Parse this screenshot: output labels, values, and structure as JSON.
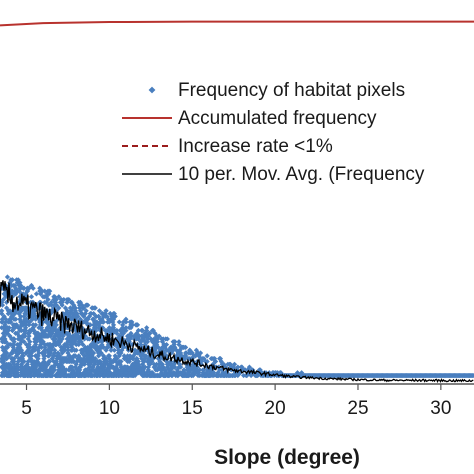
{
  "chart_data": {
    "type": "scatter",
    "xlabel": "Slope (degree)",
    "ylabel": "",
    "title": "",
    "x_ticks": [
      5,
      10,
      15,
      20,
      25,
      30
    ],
    "xlim": [
      3.4,
      32
    ],
    "ylim": [
      0,
      100
    ],
    "grid": false,
    "legend_position": "top-right",
    "legend": [
      {
        "label": "Frequency of habitat pixels",
        "style": "marker",
        "color": "#4a7fbf"
      },
      {
        "label": "Accumulated frequency",
        "style": "line",
        "color": "#b8322e"
      },
      {
        "label": "Increase rate <1%",
        "style": "dashed",
        "color": "#9b1c1c"
      },
      {
        "label": "10 per. Mov. Avg. (Frequency",
        "style": "line",
        "color": "#000000"
      }
    ],
    "series": [
      {
        "name": "Frequency of habitat pixels",
        "kind": "scatter",
        "color": "#4a7fbf",
        "description_points": [
          {
            "x": 3.5,
            "y_max": 30,
            "y_min": 2
          },
          {
            "x": 6,
            "y_max": 26,
            "y_min": 2
          },
          {
            "x": 8,
            "y_max": 23,
            "y_min": 2
          },
          {
            "x": 10,
            "y_max": 20,
            "y_min": 2
          },
          {
            "x": 12,
            "y_max": 16,
            "y_min": 2
          },
          {
            "x": 14,
            "y_max": 12,
            "y_min": 2
          },
          {
            "x": 16,
            "y_max": 8,
            "y_min": 2
          },
          {
            "x": 18,
            "y_max": 5,
            "y_min": 2
          },
          {
            "x": 20,
            "y_max": 3,
            "y_min": 2
          },
          {
            "x": 25,
            "y_max": 2.5,
            "y_min": 2
          },
          {
            "x": 31,
            "y_max": 2,
            "y_min": 2
          }
        ]
      },
      {
        "name": "Accumulated frequency",
        "kind": "line",
        "color": "#b8322e",
        "x": [
          3.4,
          6,
          10,
          15,
          20,
          25,
          32
        ],
        "y": [
          98.0,
          98.6,
          98.9,
          99.0,
          99.0,
          99.0,
          99.0
        ]
      },
      {
        "name": "10 per. Mov. Avg. (Frequency",
        "kind": "line",
        "color": "#000000",
        "x": [
          3.4,
          5,
          7,
          9,
          11,
          13,
          15,
          17,
          19,
          21,
          23,
          25,
          27,
          29,
          31,
          32
        ],
        "y": [
          25,
          21,
          17,
          14,
          11,
          8,
          6,
          4,
          3,
          2,
          1.5,
          1.2,
          1,
          1,
          0.9,
          0.9
        ]
      }
    ]
  }
}
